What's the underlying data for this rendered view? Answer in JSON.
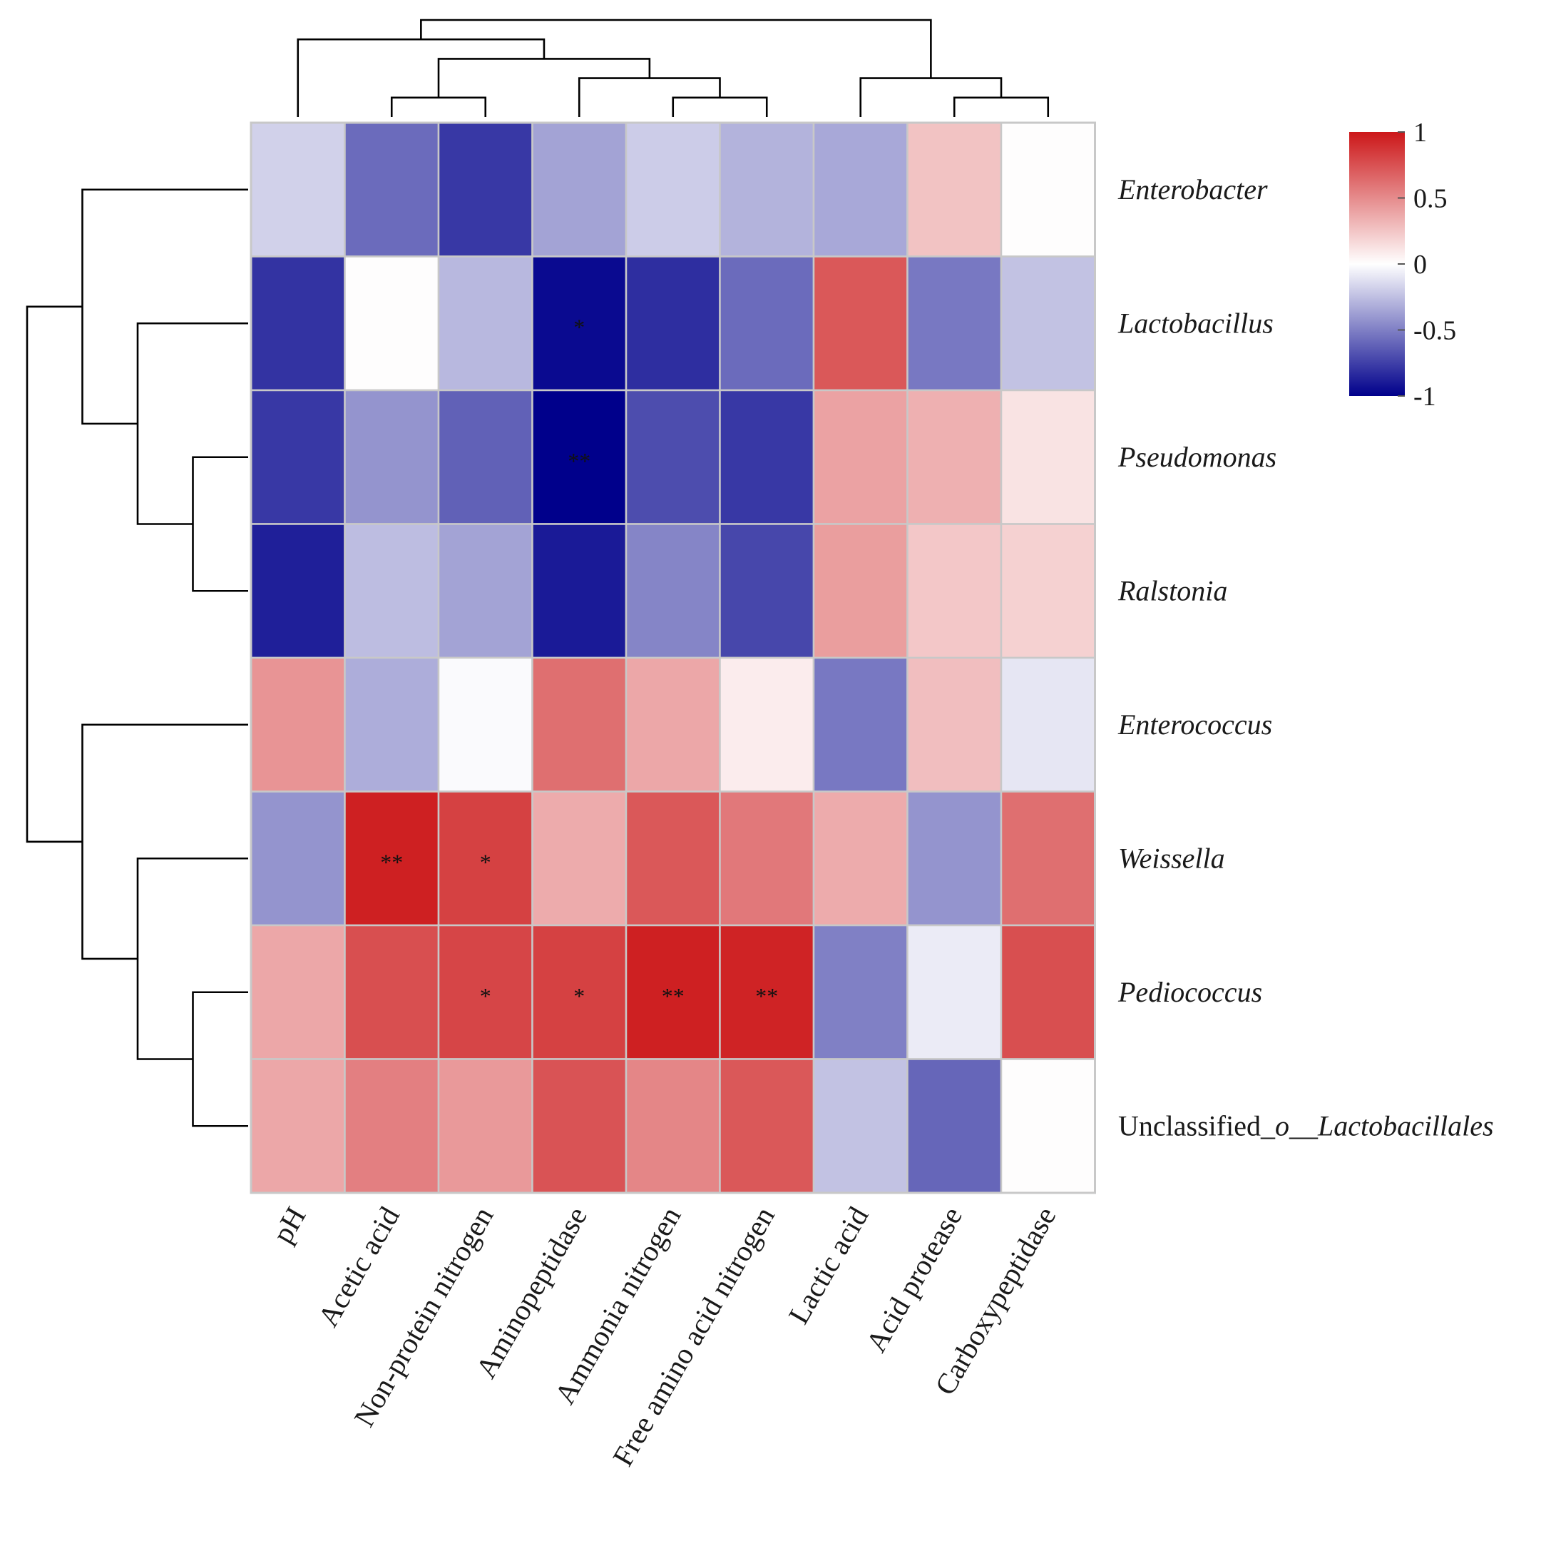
{
  "chart_data": {
    "type": "heatmap",
    "title": "",
    "rows": [
      {
        "parts": [
          {
            "text": "Enterobacter",
            "italic": true
          }
        ]
      },
      {
        "parts": [
          {
            "text": "Lactobacillus",
            "italic": true
          }
        ]
      },
      {
        "parts": [
          {
            "text": "Pseudomonas",
            "italic": true
          }
        ]
      },
      {
        "parts": [
          {
            "text": "Ralstonia",
            "italic": true
          }
        ]
      },
      {
        "parts": [
          {
            "text": "Enterococcus",
            "italic": true
          }
        ]
      },
      {
        "parts": [
          {
            "text": "Weissella",
            "italic": true
          }
        ]
      },
      {
        "parts": [
          {
            "text": "Pediococcus",
            "italic": true
          }
        ]
      },
      {
        "parts": [
          {
            "text": "Unclassified_",
            "italic": false
          },
          {
            "text": "o",
            "italic": true
          },
          {
            "text": "__",
            "italic": false
          },
          {
            "text": "Lactobacillales",
            "italic": true
          }
        ]
      }
    ],
    "columns": [
      "pH",
      "Acetic acid",
      "Non-protein nitrogen",
      "Aminopeptidase",
      "Ammonia nitrogen",
      "Free amino acid nitrogen",
      "Lactic acid",
      "Acid protease",
      "Carboxypeptidase"
    ],
    "values": [
      [
        -0.18,
        -0.58,
        -0.78,
        -0.36,
        -0.2,
        -0.3,
        -0.34,
        0.26,
        0.01
      ],
      [
        -0.8,
        0.01,
        -0.28,
        -0.96,
        -0.82,
        -0.58,
        0.72,
        -0.53,
        -0.24
      ],
      [
        -0.78,
        -0.42,
        -0.62,
        -1.0,
        -0.7,
        -0.78,
        0.4,
        0.34,
        0.12
      ],
      [
        -0.88,
        -0.26,
        -0.36,
        -0.9,
        -0.48,
        -0.72,
        0.42,
        0.24,
        0.2
      ],
      [
        0.46,
        -0.32,
        -0.02,
        0.62,
        0.38,
        0.08,
        -0.53,
        0.28,
        -0.1
      ],
      [
        -0.42,
        0.96,
        0.82,
        0.36,
        0.72,
        0.58,
        0.36,
        -0.42,
        0.62
      ],
      [
        0.38,
        0.76,
        0.8,
        0.82,
        0.96,
        0.95,
        -0.5,
        -0.08,
        0.76
      ],
      [
        0.38,
        0.55,
        0.44,
        0.74,
        0.52,
        0.72,
        -0.24,
        -0.6,
        0.01
      ]
    ],
    "significance": [
      [
        "",
        "",
        "",
        "",
        "",
        "",
        "",
        "",
        ""
      ],
      [
        "",
        "",
        "",
        "*",
        "",
        "",
        "",
        "",
        ""
      ],
      [
        "",
        "",
        "",
        "**",
        "",
        "",
        "",
        "",
        ""
      ],
      [
        "",
        "",
        "",
        "",
        "",
        "",
        "",
        "",
        ""
      ],
      [
        "",
        "",
        "",
        "",
        "",
        "",
        "",
        "",
        ""
      ],
      [
        "",
        "**",
        "*",
        "",
        "",
        "",
        "",
        "",
        ""
      ],
      [
        "",
        "",
        "*",
        "*",
        "**",
        "**",
        "",
        "",
        ""
      ],
      [
        "",
        "",
        "",
        "",
        "",
        "",
        "",
        "",
        ""
      ]
    ],
    "color_scale": {
      "range": [
        -1,
        1
      ],
      "low": "#00008b",
      "mid": "#ffffff",
      "high": "#cc1719",
      "ticks": [
        1,
        0.5,
        0,
        -0.5,
        -1
      ],
      "tick_labels": [
        "1",
        "0.5",
        "0",
        "-0.5",
        "-1"
      ]
    },
    "row_dendrogram": [
      [
        2,
        3
      ],
      [
        1,
        8
      ],
      [
        0,
        9
      ],
      [
        6,
        7
      ],
      [
        5,
        11
      ],
      [
        4,
        12
      ],
      [
        10,
        13
      ]
    ],
    "column_dendrogram": [
      [
        1,
        2
      ],
      [
        4,
        5
      ],
      [
        3,
        10
      ],
      [
        9,
        11
      ],
      [
        0,
        12
      ],
      [
        7,
        8
      ],
      [
        6,
        14
      ],
      [
        13,
        15
      ]
    ]
  }
}
